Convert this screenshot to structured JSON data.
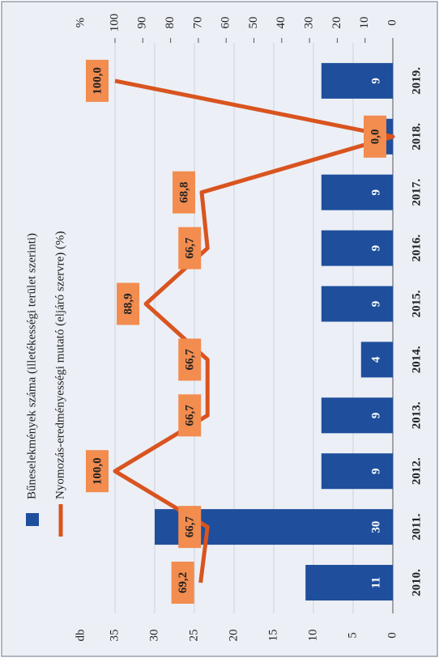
{
  "chart_data": {
    "type": "bar_line",
    "categories": [
      "2010.",
      "2011.",
      "2012.",
      "2013.",
      "2014.",
      "2015.",
      "2016.",
      "2017.",
      "2018.",
      "2019."
    ],
    "ylabel": "db",
    "y2label": "%",
    "ylim": [
      0,
      35
    ],
    "yticks": [
      0,
      5,
      10,
      15,
      20,
      25,
      30,
      35
    ],
    "y2lim": [
      0,
      100
    ],
    "y2ticks": [
      0,
      10,
      20,
      30,
      40,
      50,
      60,
      70,
      80,
      90,
      100
    ],
    "series": [
      {
        "name": "Bűneselekmények száma (illetékességi terület szerinti)",
        "type": "bar",
        "color": "#1f4f9c",
        "values": [
          11,
          30,
          9,
          9,
          4,
          9,
          9,
          9,
          1,
          9
        ],
        "value_labels": [
          "11",
          "30",
          "9",
          "9",
          "4",
          "9",
          "9",
          "9",
          null,
          "9"
        ]
      },
      {
        "name": "Nyomozás-eredményességi mutató (eljáró szervre) (%)",
        "type": "line",
        "axis": "y2",
        "color": "#d9541f",
        "values": [
          69.2,
          66.7,
          100.0,
          66.7,
          66.7,
          88.9,
          66.7,
          68.8,
          0.0,
          100.0
        ],
        "value_labels": [
          "69,2",
          "66,7",
          "100,0",
          "66,7",
          "66,7",
          "88,9",
          "66,7",
          "68,8",
          "0,0",
          "100,0"
        ]
      }
    ]
  }
}
